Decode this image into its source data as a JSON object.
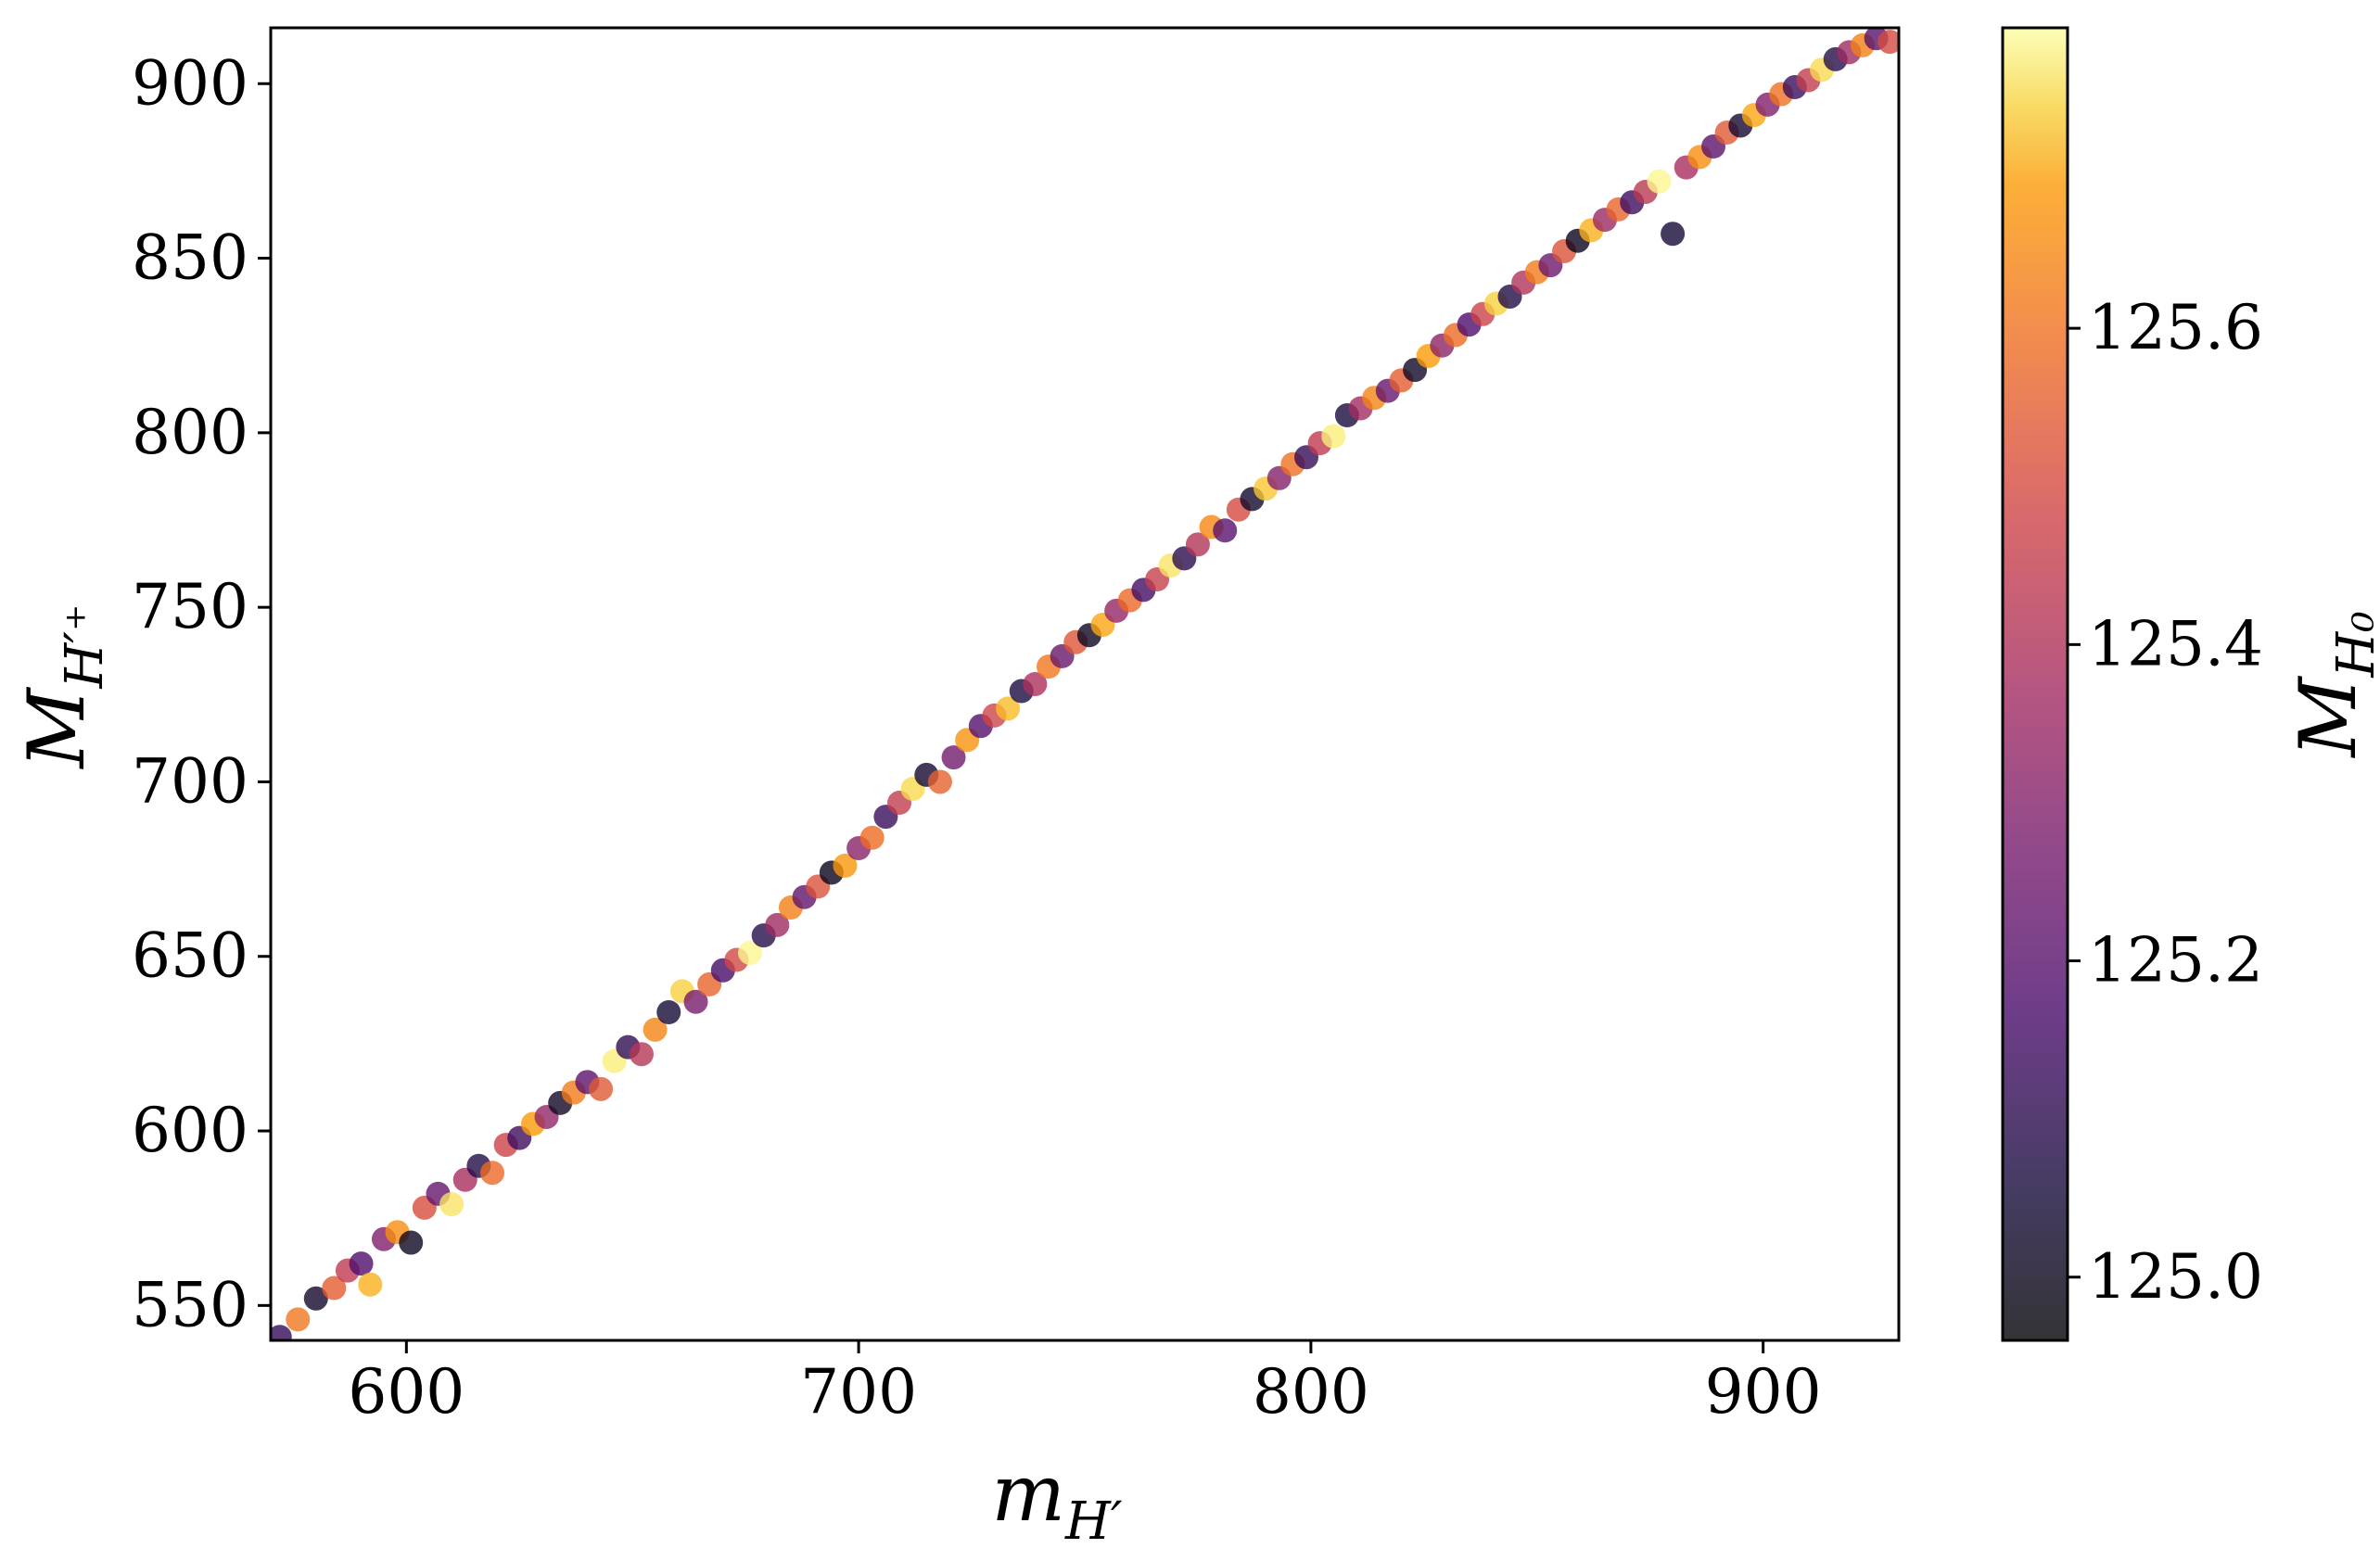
{
  "chart_data": {
    "type": "scatter",
    "xlabel": {
      "main": "m",
      "sub": "H′"
    },
    "ylabel": {
      "main": "M",
      "sub": "H′⁺"
    },
    "colorbar_label": {
      "main": "M",
      "sub": "H₀"
    },
    "xlim": [
      570,
      930
    ],
    "ylim": [
      540,
      916
    ],
    "xticks": [
      600,
      700,
      800,
      900
    ],
    "xtick_labels": [
      "600",
      "700",
      "800",
      "900"
    ],
    "yticks": [
      550,
      600,
      650,
      700,
      750,
      800,
      850,
      900
    ],
    "ytick_labels": [
      "550",
      "600",
      "650",
      "700",
      "750",
      "800",
      "850",
      "900"
    ],
    "color_range": [
      124.96,
      125.79
    ],
    "colorbar_ticks": [
      125.0,
      125.2,
      125.4,
      125.6
    ],
    "colorbar_tick_labels": [
      "125.0",
      "125.2",
      "125.4",
      "125.6"
    ],
    "colormap": "inferno",
    "grid": false,
    "points": [
      {
        "x": 572,
        "y": 541,
        "c": 125.12
      },
      {
        "x": 576,
        "y": 546,
        "c": 125.61
      },
      {
        "x": 580,
        "y": 552,
        "c": 125.03
      },
      {
        "x": 584,
        "y": 555,
        "c": 125.55
      },
      {
        "x": 587,
        "y": 560,
        "c": 125.44
      },
      {
        "x": 590,
        "y": 562,
        "c": 125.18
      },
      {
        "x": 592,
        "y": 556,
        "c": 125.71
      },
      {
        "x": 595,
        "y": 569,
        "c": 125.29
      },
      {
        "x": 598,
        "y": 571,
        "c": 125.66
      },
      {
        "x": 601,
        "y": 568,
        "c": 125.01
      },
      {
        "x": 604,
        "y": 578,
        "c": 125.51
      },
      {
        "x": 607,
        "y": 582,
        "c": 125.23
      },
      {
        "x": 610,
        "y": 579,
        "c": 125.76
      },
      {
        "x": 613,
        "y": 586,
        "c": 125.38
      },
      {
        "x": 616,
        "y": 590,
        "c": 125.08
      },
      {
        "x": 619,
        "y": 588,
        "c": 125.58
      },
      {
        "x": 622,
        "y": 596,
        "c": 125.47
      },
      {
        "x": 625,
        "y": 598,
        "c": 125.14
      },
      {
        "x": 628,
        "y": 602,
        "c": 125.69
      },
      {
        "x": 631,
        "y": 604,
        "c": 125.33
      },
      {
        "x": 634,
        "y": 608,
        "c": 125.02
      },
      {
        "x": 637,
        "y": 611,
        "c": 125.62
      },
      {
        "x": 640,
        "y": 614,
        "c": 125.21
      },
      {
        "x": 643,
        "y": 612,
        "c": 125.54
      },
      {
        "x": 646,
        "y": 620,
        "c": 125.77
      },
      {
        "x": 649,
        "y": 624,
        "c": 125.11
      },
      {
        "x": 652,
        "y": 622,
        "c": 125.42
      },
      {
        "x": 655,
        "y": 629,
        "c": 125.64
      },
      {
        "x": 658,
        "y": 634,
        "c": 125.05
      },
      {
        "x": 661,
        "y": 640,
        "c": 125.74
      },
      {
        "x": 664,
        "y": 637,
        "c": 125.27
      },
      {
        "x": 667,
        "y": 642,
        "c": 125.57
      },
      {
        "x": 670,
        "y": 646,
        "c": 125.16
      },
      {
        "x": 673,
        "y": 649,
        "c": 125.49
      },
      {
        "x": 676,
        "y": 651,
        "c": 125.78
      },
      {
        "x": 679,
        "y": 656,
        "c": 125.09
      },
      {
        "x": 682,
        "y": 659,
        "c": 125.36
      },
      {
        "x": 685,
        "y": 664,
        "c": 125.63
      },
      {
        "x": 688,
        "y": 667,
        "c": 125.22
      },
      {
        "x": 691,
        "y": 670,
        "c": 125.52
      },
      {
        "x": 694,
        "y": 674,
        "c": 125.0
      },
      {
        "x": 697,
        "y": 676,
        "c": 125.68
      },
      {
        "x": 700,
        "y": 681,
        "c": 125.31
      },
      {
        "x": 703,
        "y": 684,
        "c": 125.59
      },
      {
        "x": 706,
        "y": 690,
        "c": 125.13
      },
      {
        "x": 709,
        "y": 694,
        "c": 125.45
      },
      {
        "x": 712,
        "y": 698,
        "c": 125.75
      },
      {
        "x": 715,
        "y": 702,
        "c": 125.04
      },
      {
        "x": 718,
        "y": 700,
        "c": 125.56
      },
      {
        "x": 721,
        "y": 707,
        "c": 125.26
      },
      {
        "x": 724,
        "y": 712,
        "c": 125.67
      },
      {
        "x": 727,
        "y": 716,
        "c": 125.19
      },
      {
        "x": 730,
        "y": 719,
        "c": 125.48
      },
      {
        "x": 733,
        "y": 721,
        "c": 125.72
      },
      {
        "x": 736,
        "y": 726,
        "c": 125.07
      },
      {
        "x": 739,
        "y": 728,
        "c": 125.39
      },
      {
        "x": 742,
        "y": 733,
        "c": 125.61
      },
      {
        "x": 745,
        "y": 736,
        "c": 125.24
      },
      {
        "x": 748,
        "y": 740,
        "c": 125.53
      },
      {
        "x": 751,
        "y": 742,
        "c": 125.01
      },
      {
        "x": 754,
        "y": 745,
        "c": 125.7
      },
      {
        "x": 757,
        "y": 749,
        "c": 125.34
      },
      {
        "x": 760,
        "y": 752,
        "c": 125.58
      },
      {
        "x": 763,
        "y": 755,
        "c": 125.15
      },
      {
        "x": 766,
        "y": 758,
        "c": 125.46
      },
      {
        "x": 769,
        "y": 762,
        "c": 125.76
      },
      {
        "x": 772,
        "y": 764,
        "c": 125.1
      },
      {
        "x": 775,
        "y": 768,
        "c": 125.41
      },
      {
        "x": 778,
        "y": 773,
        "c": 125.65
      },
      {
        "x": 781,
        "y": 772,
        "c": 125.2
      },
      {
        "x": 784,
        "y": 778,
        "c": 125.5
      },
      {
        "x": 787,
        "y": 781,
        "c": 125.03
      },
      {
        "x": 790,
        "y": 784,
        "c": 125.73
      },
      {
        "x": 793,
        "y": 787,
        "c": 125.3
      },
      {
        "x": 796,
        "y": 791,
        "c": 125.6
      },
      {
        "x": 799,
        "y": 793,
        "c": 125.12
      },
      {
        "x": 802,
        "y": 797,
        "c": 125.44
      },
      {
        "x": 805,
        "y": 799,
        "c": 125.77
      },
      {
        "x": 808,
        "y": 805,
        "c": 125.06
      },
      {
        "x": 811,
        "y": 807,
        "c": 125.37
      },
      {
        "x": 814,
        "y": 810,
        "c": 125.64
      },
      {
        "x": 817,
        "y": 812,
        "c": 125.23
      },
      {
        "x": 820,
        "y": 815,
        "c": 125.55
      },
      {
        "x": 823,
        "y": 818,
        "c": 125.02
      },
      {
        "x": 826,
        "y": 822,
        "c": 125.69
      },
      {
        "x": 829,
        "y": 825,
        "c": 125.32
      },
      {
        "x": 832,
        "y": 828,
        "c": 125.59
      },
      {
        "x": 835,
        "y": 831,
        "c": 125.17
      },
      {
        "x": 838,
        "y": 834,
        "c": 125.47
      },
      {
        "x": 841,
        "y": 837,
        "c": 125.74
      },
      {
        "x": 844,
        "y": 839,
        "c": 125.08
      },
      {
        "x": 847,
        "y": 843,
        "c": 125.4
      },
      {
        "x": 850,
        "y": 846,
        "c": 125.62
      },
      {
        "x": 853,
        "y": 848,
        "c": 125.25
      },
      {
        "x": 856,
        "y": 852,
        "c": 125.52
      },
      {
        "x": 859,
        "y": 855,
        "c": 125.0
      },
      {
        "x": 862,
        "y": 858,
        "c": 125.71
      },
      {
        "x": 865,
        "y": 861,
        "c": 125.35
      },
      {
        "x": 868,
        "y": 864,
        "c": 125.57
      },
      {
        "x": 871,
        "y": 866,
        "c": 125.14
      },
      {
        "x": 874,
        "y": 869,
        "c": 125.43
      },
      {
        "x": 877,
        "y": 872,
        "c": 125.78
      },
      {
        "x": 880,
        "y": 857,
        "c": 125.05
      },
      {
        "x": 883,
        "y": 876,
        "c": 125.38
      },
      {
        "x": 886,
        "y": 879,
        "c": 125.66
      },
      {
        "x": 889,
        "y": 882,
        "c": 125.21
      },
      {
        "x": 892,
        "y": 886,
        "c": 125.54
      },
      {
        "x": 895,
        "y": 888,
        "c": 125.04
      },
      {
        "x": 898,
        "y": 891,
        "c": 125.7
      },
      {
        "x": 901,
        "y": 894,
        "c": 125.29
      },
      {
        "x": 904,
        "y": 897,
        "c": 125.6
      },
      {
        "x": 907,
        "y": 899,
        "c": 125.13
      },
      {
        "x": 910,
        "y": 901,
        "c": 125.45
      },
      {
        "x": 913,
        "y": 904,
        "c": 125.75
      },
      {
        "x": 916,
        "y": 907,
        "c": 125.09
      },
      {
        "x": 919,
        "y": 909,
        "c": 125.36
      },
      {
        "x": 922,
        "y": 911,
        "c": 125.63
      },
      {
        "x": 925,
        "y": 913,
        "c": 125.2
      },
      {
        "x": 928,
        "y": 912,
        "c": 125.5
      }
    ]
  }
}
